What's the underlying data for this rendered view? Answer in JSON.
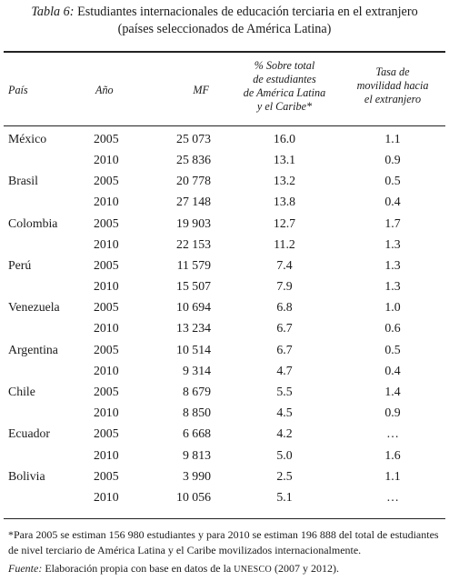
{
  "caption": {
    "label": "Tabla 6:",
    "line1": "Estudiantes internacionales de educación terciaria en el extranjero",
    "line2": "(países seleccionados de América Latina)"
  },
  "headers": {
    "pais": "País",
    "anio": "Año",
    "mf": "MF",
    "pct": [
      "% Sobre total",
      "de estudiantes",
      "de América Latina",
      "y el Caribe*"
    ],
    "tasa": [
      "Tasa de",
      "movilidad hacia",
      "el extranjero"
    ]
  },
  "rows": [
    {
      "pais": "México",
      "anio": "2005",
      "mf": "25 073",
      "pct": "16.0",
      "tasa": "1.1"
    },
    {
      "pais": "",
      "anio": "2010",
      "mf": "25 836",
      "pct": "13.1",
      "tasa": "0.9"
    },
    {
      "pais": "Brasil",
      "anio": "2005",
      "mf": "20 778",
      "pct": "13.2",
      "tasa": "0.5"
    },
    {
      "pais": "",
      "anio": "2010",
      "mf": "27 148",
      "pct": "13.8",
      "tasa": "0.4"
    },
    {
      "pais": "Colombia",
      "anio": "2005",
      "mf": "19 903",
      "pct": "12.7",
      "tasa": "1.7"
    },
    {
      "pais": "",
      "anio": "2010",
      "mf": "22 153",
      "pct": "11.2",
      "tasa": "1.3"
    },
    {
      "pais": "Perú",
      "anio": "2005",
      "mf": "11 579",
      "pct": "7.4",
      "tasa": "1.3"
    },
    {
      "pais": "",
      "anio": "2010",
      "mf": "15 507",
      "pct": "7.9",
      "tasa": "1.3"
    },
    {
      "pais": "Venezuela",
      "anio": "2005",
      "mf": "10 694",
      "pct": "6.8",
      "tasa": "1.0"
    },
    {
      "pais": "",
      "anio": "2010",
      "mf": "13 234",
      "pct": "6.7",
      "tasa": "0.6"
    },
    {
      "pais": "Argentina",
      "anio": "2005",
      "mf": "10 514",
      "pct": "6.7",
      "tasa": "0.5"
    },
    {
      "pais": "",
      "anio": "2010",
      "mf": "9 314",
      "pct": "4.7",
      "tasa": "0.4"
    },
    {
      "pais": "Chile",
      "anio": "2005",
      "mf": "8 679",
      "pct": "5.5",
      "tasa": "1.4"
    },
    {
      "pais": "",
      "anio": "2010",
      "mf": "8 850",
      "pct": "4.5",
      "tasa": "0.9"
    },
    {
      "pais": "Ecuador",
      "anio": "2005",
      "mf": "6 668",
      "pct": "4.2",
      "tasa": "…"
    },
    {
      "pais": "",
      "anio": "2010",
      "mf": "9 813",
      "pct": "5.0",
      "tasa": "1.6"
    },
    {
      "pais": "Bolivia",
      "anio": "2005",
      "mf": "3 990",
      "pct": "2.5",
      "tasa": "1.1"
    },
    {
      "pais": "",
      "anio": "2010",
      "mf": "10 056",
      "pct": "5.1",
      "tasa": "…"
    }
  ],
  "footnote": "*Para 2005 se estiman 156 980 estudiantes y para 2010 se estiman 196 888 del total de estudiantes de nivel terciario de América Latina y el Caribe movilizados internacionalmente.",
  "source": {
    "label": "Fuente:",
    "pre": "Elaboración propia con base en datos de la",
    "org": "UNESCO",
    "post": "(2007 y 2012)."
  }
}
